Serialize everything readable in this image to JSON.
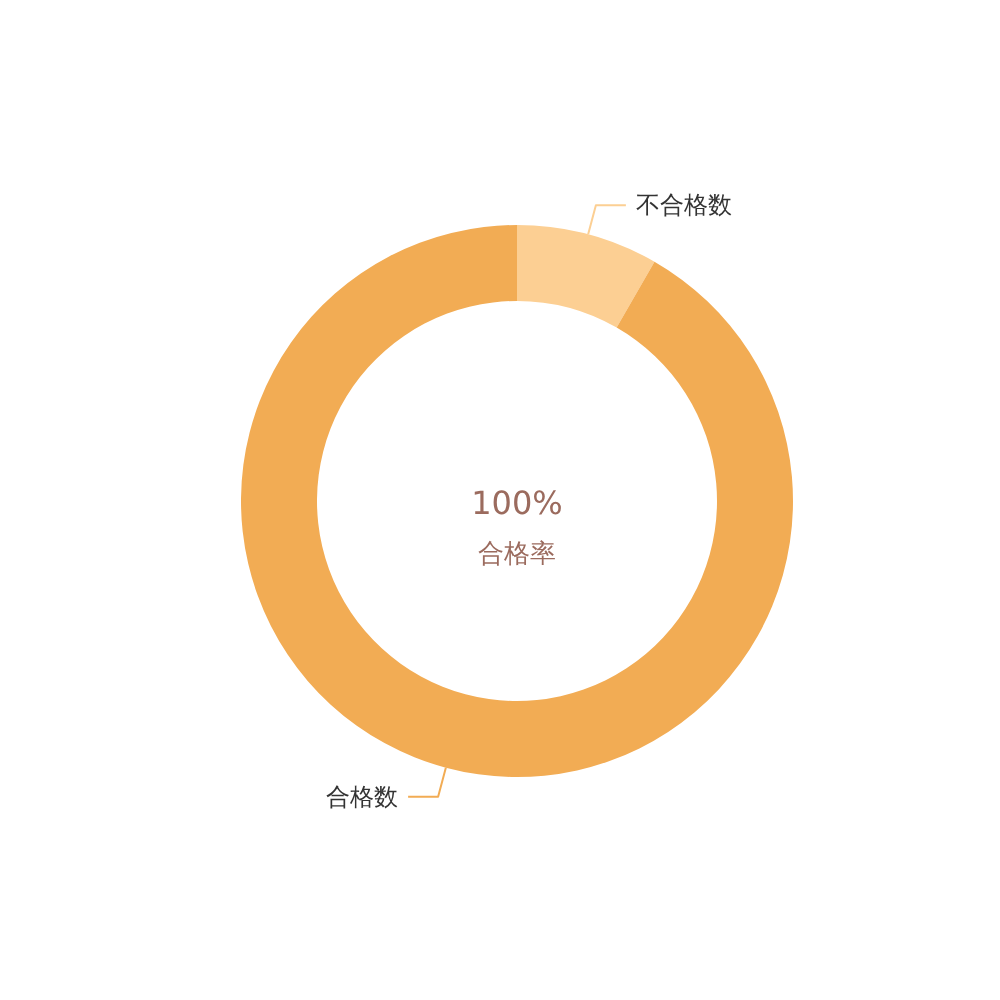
{
  "chart_data": {
    "type": "donut",
    "categories": [
      "不合格数",
      "合格数"
    ],
    "values": [
      8.3,
      91.7
    ],
    "colors": [
      "#fccf93",
      "#f2ac54"
    ],
    "annotations": [
      "100%",
      "合格率"
    ]
  }
}
